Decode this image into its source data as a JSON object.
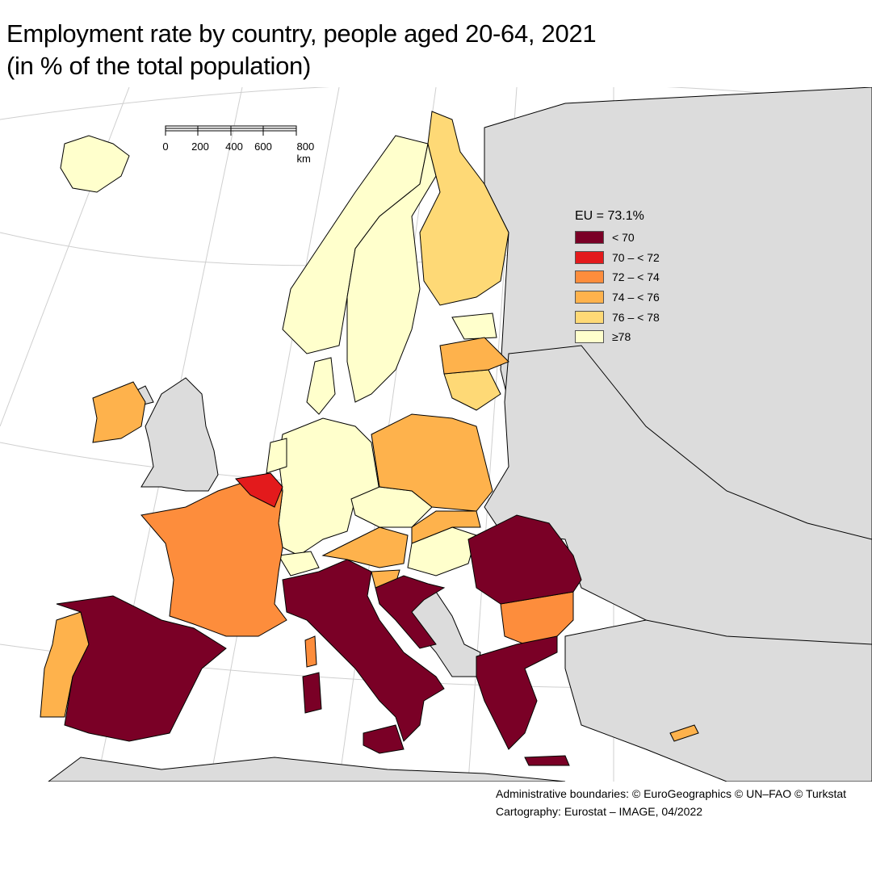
{
  "title": {
    "line1": "Employment rate by country, people aged 20-64, 2021",
    "line2": "(in % of the total population)"
  },
  "legend": {
    "title": "EU = 73.1%",
    "classes": [
      {
        "label": "< 70",
        "color": "#7a0026"
      },
      {
        "label": "70 – < 72",
        "color": "#e31a1c"
      },
      {
        "label": "72 – < 74",
        "color": "#fd8d3c"
      },
      {
        "label": "74 – < 76",
        "color": "#feb24c"
      },
      {
        "label": "76 – < 78",
        "color": "#fed976"
      },
      {
        "label": "≥78",
        "color": "#ffffcc"
      }
    ]
  },
  "scale_bar": {
    "ticks": [
      "0",
      "200",
      "400",
      "600",
      "800 km"
    ]
  },
  "colors": {
    "non_eu_land": "#dcdcdc",
    "sea": "#ffffff",
    "border": "#000000",
    "graticule": "#cfcfcf"
  },
  "credits": {
    "line1": "Administrative boundaries: © EuroGeographics © UN–FAO © Turkstat",
    "line2": "Cartography: Eurostat – IMAGE, 04/2022"
  }
}
